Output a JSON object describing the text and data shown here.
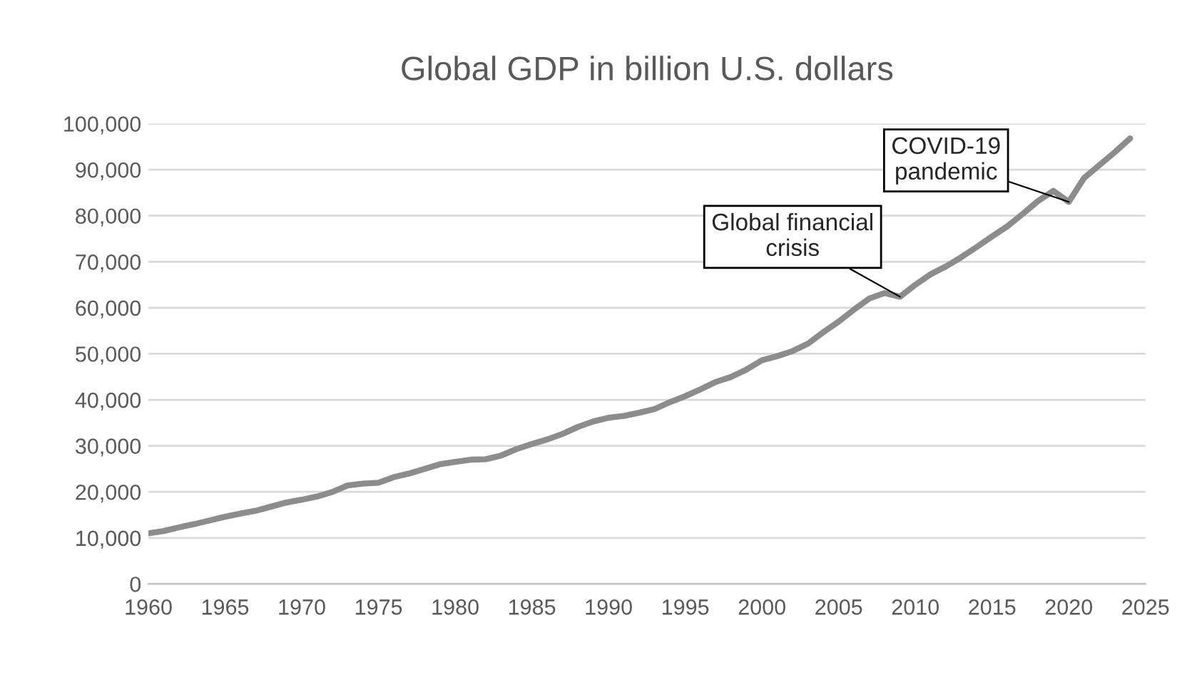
{
  "chart_data": {
    "type": "line",
    "title": "Global GDP in billion U.S. dollars",
    "x": [
      1960,
      1961,
      1962,
      1963,
      1964,
      1965,
      1966,
      1967,
      1968,
      1969,
      1970,
      1971,
      1972,
      1973,
      1974,
      1975,
      1976,
      1977,
      1978,
      1979,
      1980,
      1981,
      1982,
      1983,
      1984,
      1985,
      1986,
      1987,
      1988,
      1989,
      1990,
      1991,
      1992,
      1993,
      1994,
      1995,
      1996,
      1997,
      1998,
      1999,
      2000,
      2001,
      2002,
      2003,
      2004,
      2005,
      2006,
      2007,
      2008,
      2009,
      2010,
      2011,
      2012,
      2013,
      2014,
      2015,
      2016,
      2017,
      2018,
      2019,
      2020,
      2021,
      2022,
      2023,
      2024
    ],
    "series": [
      {
        "color": "#8c8c8c",
        "values": [
          11000,
          11500,
          12300,
          13000,
          13800,
          14600,
          15300,
          15900,
          16800,
          17700,
          18300,
          19000,
          20000,
          21400,
          21800,
          22000,
          23200,
          24000,
          25000,
          26000,
          26500,
          27000,
          27100,
          27900,
          29300,
          30400,
          31400,
          32600,
          34100,
          35300,
          36100,
          36500,
          37200,
          38000,
          39500,
          40800,
          42300,
          43900,
          45000,
          46600,
          48600,
          49500,
          50600,
          52200,
          54700,
          57000,
          59600,
          62000,
          63200,
          62400,
          65000,
          67300,
          69000,
          71000,
          73200,
          75500,
          77700,
          80400,
          83200,
          85400,
          83000,
          88200,
          91000,
          93800,
          96800
        ]
      }
    ],
    "xlim": [
      1960,
      2025
    ],
    "xticks": [
      1960,
      1965,
      1970,
      1975,
      1980,
      1985,
      1990,
      1995,
      2000,
      2005,
      2010,
      2015,
      2020,
      2025
    ],
    "ylim": [
      0,
      100000
    ],
    "yticks": [
      {
        "value": 0,
        "label": "0"
      },
      {
        "value": 10000,
        "label": "10,000"
      },
      {
        "value": 20000,
        "label": "20,000"
      },
      {
        "value": 30000,
        "label": "30,000"
      },
      {
        "value": 40000,
        "label": "40,000"
      },
      {
        "value": 50000,
        "label": "50,000"
      },
      {
        "value": 60000,
        "label": "60,000"
      },
      {
        "value": 70000,
        "label": "70,000"
      },
      {
        "value": 80000,
        "label": "80,000"
      },
      {
        "value": 90000,
        "label": "90,000"
      },
      {
        "value": 100000,
        "label": "100,000"
      }
    ],
    "grid": "y",
    "legend": false,
    "marker": "none",
    "line_style": "solid",
    "annotations": [
      {
        "text": "Global financial\ncrisis",
        "x": 2009,
        "y": 62400
      },
      {
        "text": "COVID-19\npandemic",
        "x": 2020,
        "y": 83000
      }
    ]
  }
}
